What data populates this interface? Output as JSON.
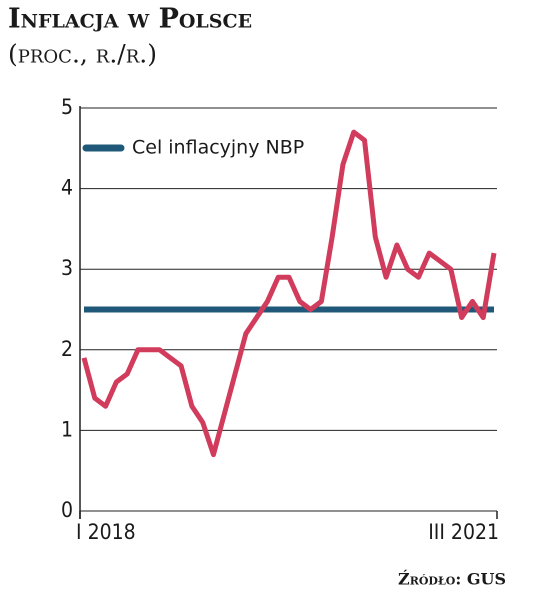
{
  "chart_data": {
    "type": "line",
    "title": "Inflacja w Polsce",
    "subtitle": "(proc., r./r.)",
    "source": "Źródło: GUS",
    "categories": [
      "I 2018",
      null,
      null,
      null,
      null,
      null,
      null,
      null,
      null,
      null,
      null,
      null,
      null,
      null,
      null,
      null,
      null,
      null,
      null,
      null,
      null,
      null,
      null,
      null,
      null,
      null,
      null,
      null,
      null,
      null,
      null,
      null,
      null,
      null,
      null,
      null,
      null,
      null,
      "III 2021"
    ],
    "series": [
      {
        "color": "#d23c5c",
        "values": [
          1.9,
          1.4,
          1.3,
          1.6,
          1.7,
          2.0,
          2.0,
          2.0,
          1.9,
          1.8,
          1.3,
          1.1,
          0.7,
          1.2,
          1.7,
          2.2,
          2.4,
          2.6,
          2.9,
          2.9,
          2.6,
          2.5,
          2.6,
          3.4,
          4.3,
          4.7,
          4.6,
          3.4,
          2.9,
          3.3,
          3.0,
          2.9,
          3.2,
          3.1,
          3.0,
          2.4,
          2.6,
          2.4,
          3.2
        ]
      },
      {
        "name": "Cel inflacyjny NBP",
        "color": "#1f5878",
        "values": [
          2.5,
          2.5,
          2.5,
          2.5,
          2.5,
          2.5,
          2.5,
          2.5,
          2.5,
          2.5,
          2.5,
          2.5,
          2.5,
          2.5,
          2.5,
          2.5,
          2.5,
          2.5,
          2.5,
          2.5,
          2.5,
          2.5,
          2.5,
          2.5,
          2.5,
          2.5,
          2.5,
          2.5,
          2.5,
          2.5,
          2.5,
          2.5,
          2.5,
          2.5,
          2.5,
          2.5,
          2.5,
          2.5,
          2.5
        ]
      }
    ],
    "ylim": [
      0,
      5
    ],
    "yticks": [
      0,
      1,
      2,
      3,
      4,
      5
    ],
    "grid": true,
    "legend": "top-left"
  }
}
